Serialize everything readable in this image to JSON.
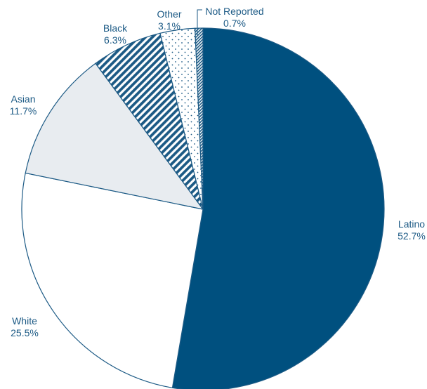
{
  "chart_data": {
    "type": "pie",
    "title": "",
    "slices": [
      {
        "name": "Latino",
        "value": 52.7,
        "value_label": "52.7%",
        "color": "#00507f",
        "fill": "solid"
      },
      {
        "name": "White",
        "value": 25.5,
        "value_label": "25.5%",
        "color": "#ffffff",
        "fill": "solid"
      },
      {
        "name": "Asian",
        "value": 11.7,
        "value_label": "11.7%",
        "color": "#e8ecf0",
        "fill": "solid"
      },
      {
        "name": "Black",
        "value": 6.3,
        "value_label": "6.3%",
        "color": "#1c5a85",
        "fill": "diagonal-hatch"
      },
      {
        "name": "Other",
        "value": 3.1,
        "value_label": "3.1%",
        "color": "#1c5a85",
        "fill": "dots"
      },
      {
        "name": "Not Reported",
        "value": 0.7,
        "value_label": "0.7%",
        "color": "#1c5a85",
        "fill": "dense-hatch"
      }
    ],
    "start": "12 o'clock",
    "direction": "clockwise",
    "label_color": "#1c5a85",
    "outline_color": "#1c5a85",
    "legend": "none (direct labels)"
  }
}
